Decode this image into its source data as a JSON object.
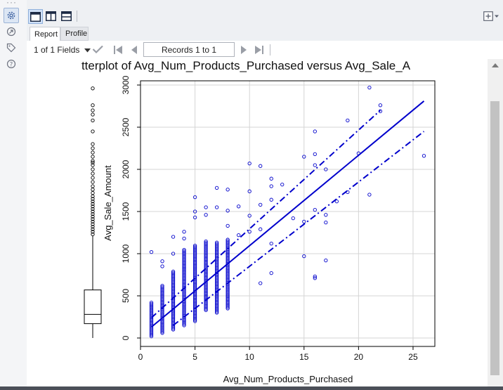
{
  "sidebar": {
    "dots": "···",
    "icons": [
      "gear-icon",
      "workflow-icon",
      "tag-icon",
      "help-icon"
    ]
  },
  "toolbar": {
    "layout_icons": [
      "single-view-icon",
      "split-vertical-icon",
      "split-horizontal-icon"
    ],
    "right_icon": "add-window-icon"
  },
  "tabs": [
    {
      "label": "Report",
      "active": true
    },
    {
      "label": "Profile",
      "active": false
    }
  ],
  "records": {
    "fields_label": "1 of 1 Fields",
    "records_label": "Records 1 to 1"
  },
  "colors": {
    "plot": "#0000cc",
    "grid": "#d4d4d4",
    "accent": "#2a61c6"
  },
  "chart_data": {
    "type": "scatter",
    "title": "tterplot of Avg_Num_Products_Purchased versus Avg_Sale_A",
    "xlabel": "Avg_Num_Products_Purchased",
    "ylabel": "Avg_Sale_Amount",
    "xlim": [
      0,
      27
    ],
    "ylim": [
      -100,
      3050
    ],
    "xticks": [
      0,
      5,
      10,
      15,
      20,
      25
    ],
    "yticks": [
      0,
      500,
      1000,
      1500,
      2000,
      2500,
      3000
    ],
    "grid": true,
    "fit_line": {
      "x": [
        1,
        26
      ],
      "y": [
        130,
        2810
      ]
    },
    "confidence_upper": {
      "x": [
        1,
        22
      ],
      "y": [
        240,
        2700
      ]
    },
    "confidence_lower": {
      "x": [
        3,
        26
      ],
      "y": [
        150,
        2450
      ]
    },
    "boxplot": {
      "min": 0,
      "q1": 170,
      "median": 280,
      "q3": 570,
      "whisker_high": 1210
    },
    "boxplot_outliers": [
      1230,
      1260,
      1290,
      1320,
      1350,
      1380,
      1410,
      1440,
      1470,
      1500,
      1530,
      1560,
      1590,
      1620,
      1650,
      1680,
      1720,
      1760,
      1800,
      1850,
      1900,
      1950,
      2000,
      2050,
      2080,
      2100,
      2150,
      2200,
      2250,
      2300,
      2450,
      2580,
      2650,
      2700,
      2760,
      2960
    ],
    "outliers": [
      {
        "x": 1,
        "y": 1020
      },
      {
        "x": 2,
        "y": 910
      },
      {
        "x": 2,
        "y": 850
      },
      {
        "x": 3,
        "y": 1200
      },
      {
        "x": 3,
        "y": 1000
      },
      {
        "x": 4,
        "y": 1260
      },
      {
        "x": 4,
        "y": 1180
      },
      {
        "x": 5,
        "y": 1670
      },
      {
        "x": 5,
        "y": 1500
      },
      {
        "x": 5,
        "y": 1430
      },
      {
        "x": 6,
        "y": 1550
      },
      {
        "x": 6,
        "y": 1460
      },
      {
        "x": 7,
        "y": 1780
      },
      {
        "x": 7,
        "y": 1550
      },
      {
        "x": 8,
        "y": 1760
      },
      {
        "x": 8,
        "y": 1510
      },
      {
        "x": 8,
        "y": 1330
      },
      {
        "x": 9,
        "y": 1560
      },
      {
        "x": 9,
        "y": 1220
      },
      {
        "x": 10,
        "y": 2070
      },
      {
        "x": 10,
        "y": 1740
      },
      {
        "x": 10,
        "y": 1450
      },
      {
        "x": 10,
        "y": 1260
      },
      {
        "x": 11,
        "y": 2040
      },
      {
        "x": 11,
        "y": 1580
      },
      {
        "x": 11,
        "y": 1290
      },
      {
        "x": 11,
        "y": 650
      },
      {
        "x": 12,
        "y": 1890
      },
      {
        "x": 12,
        "y": 1800
      },
      {
        "x": 12,
        "y": 1640
      },
      {
        "x": 12,
        "y": 1120
      },
      {
        "x": 12,
        "y": 770
      },
      {
        "x": 13,
        "y": 1820
      },
      {
        "x": 14,
        "y": 1420
      },
      {
        "x": 15,
        "y": 2150
      },
      {
        "x": 15,
        "y": 1380
      },
      {
        "x": 15,
        "y": 970
      },
      {
        "x": 16,
        "y": 2450
      },
      {
        "x": 16,
        "y": 2180
      },
      {
        "x": 16,
        "y": 2050
      },
      {
        "x": 16,
        "y": 1520
      },
      {
        "x": 16,
        "y": 730
      },
      {
        "x": 16,
        "y": 710
      },
      {
        "x": 17,
        "y": 2000
      },
      {
        "x": 17,
        "y": 1460
      },
      {
        "x": 17,
        "y": 1370
      },
      {
        "x": 17,
        "y": 920
      },
      {
        "x": 18,
        "y": 1620
      },
      {
        "x": 19,
        "y": 2580
      },
      {
        "x": 19,
        "y": 1730
      },
      {
        "x": 20,
        "y": 2190
      },
      {
        "x": 21,
        "y": 2970
      },
      {
        "x": 21,
        "y": 1700
      },
      {
        "x": 22,
        "y": 2760
      },
      {
        "x": 22,
        "y": 2690
      },
      {
        "x": 26,
        "y": 2160
      }
    ],
    "clusters": [
      {
        "x": 1,
        "ymin": 20,
        "ymax": 420
      },
      {
        "x": 2,
        "ymin": 60,
        "ymax": 630
      },
      {
        "x": 3,
        "ymin": 100,
        "ymax": 800
      },
      {
        "x": 4,
        "ymin": 150,
        "ymax": 1060
      },
      {
        "x": 5,
        "ymin": 200,
        "ymax": 1100
      },
      {
        "x": 6,
        "ymin": 330,
        "ymax": 1150
      },
      {
        "x": 7,
        "ymin": 300,
        "ymax": 1140
      },
      {
        "x": 8,
        "ymin": 350,
        "ymax": 1180
      }
    ]
  }
}
